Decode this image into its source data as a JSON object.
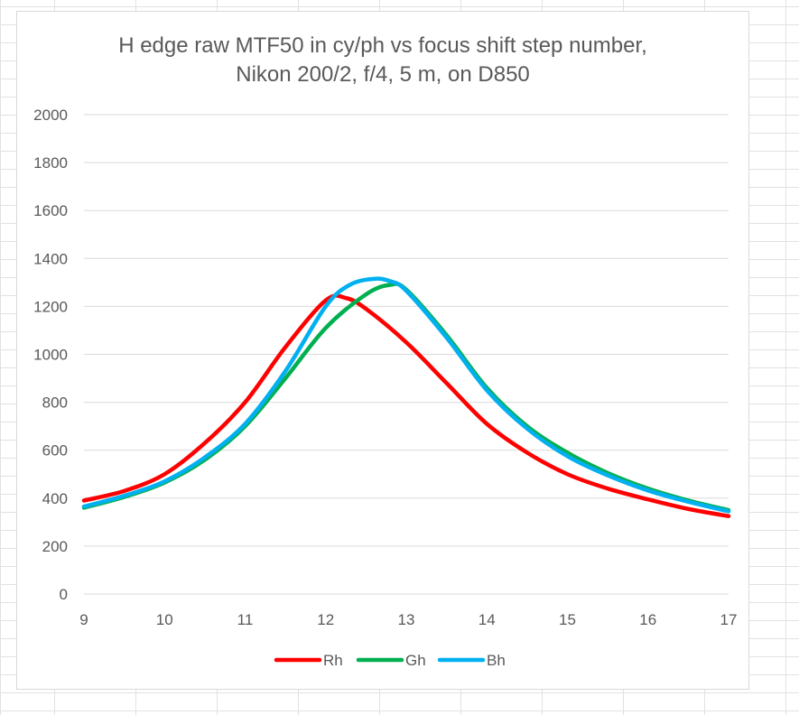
{
  "colors": {
    "background": "#ffffff",
    "gridline": "#d9d9d9",
    "text": "#595959",
    "sheet_grid": "#e1e1e1"
  },
  "chart_data": {
    "type": "line",
    "title_line1": "H edge raw MTF50 in cy/ph vs focus shift step number,",
    "title_line2": "Nikon 200/2, f/4, 5 m, on D850",
    "xlabel": "",
    "ylabel": "",
    "xlim": [
      9,
      17
    ],
    "ylim": [
      0,
      2000
    ],
    "x_ticks": [
      9,
      10,
      11,
      12,
      13,
      14,
      15,
      16,
      17
    ],
    "y_ticks": [
      0,
      200,
      400,
      600,
      800,
      1000,
      1200,
      1400,
      1600,
      1800,
      2000
    ],
    "grid": "horizontal",
    "legend_position": "bottom",
    "series": [
      {
        "name": "Rh",
        "color": "#ff0000",
        "x": [
          9,
          9.5,
          10,
          10.5,
          11,
          11.5,
          12,
          12.25,
          12.5,
          13,
          13.5,
          14,
          14.5,
          15,
          15.5,
          16,
          16.5,
          17
        ],
        "y": [
          390,
          430,
          500,
          630,
          800,
          1030,
          1225,
          1235,
          1190,
          1050,
          880,
          710,
          590,
          500,
          440,
          395,
          355,
          325
        ]
      },
      {
        "name": "Gh",
        "color": "#00b050",
        "x": [
          9,
          9.5,
          10,
          10.5,
          11,
          11.5,
          12,
          12.5,
          12.8,
          13,
          13.5,
          14,
          14.5,
          15,
          15.5,
          16,
          16.5,
          17
        ],
        "y": [
          360,
          405,
          465,
          560,
          700,
          900,
          1110,
          1250,
          1290,
          1270,
          1080,
          860,
          700,
          590,
          505,
          440,
          390,
          350
        ]
      },
      {
        "name": "Bh",
        "color": "#00b0f0",
        "x": [
          9,
          9.5,
          10,
          10.5,
          11,
          11.5,
          12,
          12.3,
          12.6,
          12.8,
          13,
          13.5,
          14,
          14.5,
          15,
          15.5,
          16,
          16.5,
          17
        ],
        "y": [
          365,
          410,
          470,
          570,
          710,
          930,
          1200,
          1290,
          1315,
          1305,
          1265,
          1070,
          850,
          690,
          575,
          495,
          432,
          385,
          345
        ]
      }
    ]
  }
}
